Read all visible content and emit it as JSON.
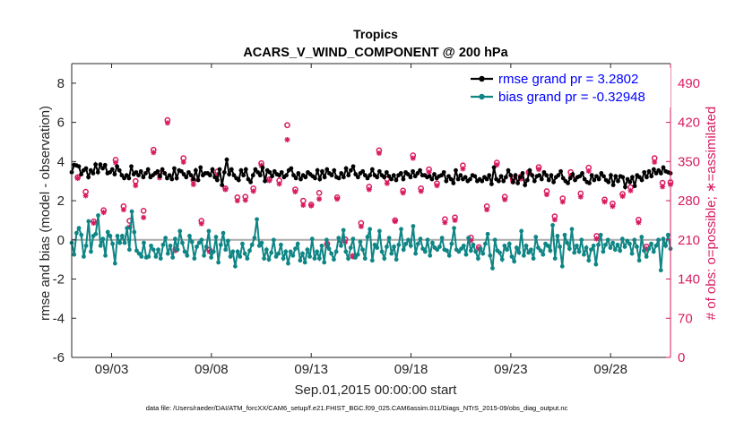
{
  "chart_data": {
    "type": "line",
    "title": "Tropics",
    "subtitle": "ACARS_V_WIND_COMPONENT @ 200 hPa",
    "xlabel": "Sep.01,2015 00:00:00 start",
    "ylabel": "rmse and bias (model - observation)",
    "ylabel_right": "# of obs: o=possible; ∗=assimilated",
    "xlim": [
      1,
      31
    ],
    "ylim": [
      -6,
      9
    ],
    "ylim_right": [
      0,
      525
    ],
    "x_ticks": [
      "09/03",
      "09/08",
      "09/13",
      "09/18",
      "09/23",
      "09/28"
    ],
    "x_tick_positions": [
      3,
      8,
      13,
      18,
      23,
      28
    ],
    "y_ticks": [
      "8",
      "6",
      "4",
      "2",
      "0",
      "-2",
      "-4",
      "-6"
    ],
    "y_right_ticks": [
      "490",
      "420",
      "350",
      "280",
      "210",
      "140",
      "70",
      "0"
    ],
    "reference_line_y": 0,
    "grid": false,
    "legend_position": "top-right",
    "legend": [
      "rmse grand pr = 3.2802",
      "bias grand pr = -0.32948"
    ],
    "colors": {
      "rmse": "#000000",
      "bias": "#0f8585",
      "obs": "#d81b60",
      "zero_line": "#aaaaaa"
    },
    "series": [
      {
        "name": "rmse grand pr = 3.2802",
        "values": [
          3.45,
          3.83,
          3.8,
          3.75,
          3.35,
          3.55,
          3.65,
          3.2,
          3.55,
          3.4,
          3.85,
          3.45,
          3.85,
          3.65,
          3.82,
          3.4,
          3.45,
          3.6,
          3.35,
          3.75,
          3.55,
          3.3,
          3.15,
          3.3,
          3.15,
          3.75,
          3.35,
          3.45,
          3.3,
          3.5,
          3.2,
          3.4,
          3.6,
          3.2,
          3.3,
          3.4,
          3.5,
          3.25,
          3.6,
          3.4,
          3.15,
          3.3,
          3.1,
          3.65,
          3.15,
          3.55,
          3.5,
          3.35,
          3.2,
          3.45,
          3.3,
          3.1,
          3.55,
          3.05,
          3.7,
          3.3,
          3.4,
          3.4,
          3.3,
          3.6,
          3.2,
          3.05,
          3.6,
          2.8,
          3.45,
          4.1,
          3.35,
          3.6,
          3.3,
          3.15,
          3.05,
          3.55,
          3.3,
          3.6,
          3.1,
          2.95,
          3.3,
          3.6,
          3.45,
          3.3,
          3.7,
          3.0,
          3.55,
          3.45,
          3.25,
          3.5,
          3.35,
          3.3,
          3.45,
          3.2,
          3.3,
          3.55,
          3.65,
          3.3,
          3.15,
          3.4,
          3.1,
          3.3,
          3.2,
          3.45,
          3.35,
          3.25,
          3.15,
          3.55,
          3.1,
          3.5,
          3.2,
          3.6,
          3.4,
          3.3,
          3.55,
          3.2,
          3.15,
          3.4,
          3.2,
          3.65,
          3.3,
          3.55,
          3.75,
          3.35,
          3.2,
          3.4,
          3.5,
          3.3,
          3.15,
          3.3,
          3.6,
          3.3,
          3.2,
          3.5,
          3.3,
          3.2,
          3.45,
          3.25,
          3.1,
          3.3,
          3.05,
          3.3,
          3.4,
          3.1,
          3.45,
          3.35,
          3.2,
          3.5,
          3.25,
          3.4,
          3.55,
          3.3,
          3.3,
          3.2,
          3.25,
          3.1,
          3.35,
          3.15,
          3.25,
          3.3,
          3.45,
          3.0,
          3.25,
          3.1,
          2.9,
          3.55,
          3.1,
          3.3,
          3.1,
          3.2,
          3.0,
          3.1,
          3.3,
          3.25,
          3.0,
          3.1,
          3.0,
          3.2,
          3.1,
          3.3,
          2.85,
          3.7,
          3.1,
          3.0,
          3.25,
          3.0,
          3.2,
          3.55,
          3.3,
          2.95,
          3.3,
          2.9,
          3.2,
          3.4,
          2.8,
          3.05,
          3.55,
          3.3,
          3.0,
          3.25,
          3.3,
          3.1,
          3.45,
          3.3,
          3.05,
          3.3,
          2.95,
          3.2,
          3.3,
          3.5,
          3.15,
          3.0,
          2.9,
          3.15,
          3.35,
          3.05,
          3.2,
          3.25,
          3.4,
          3.1,
          2.95,
          2.9,
          3.3,
          3.05,
          3.25,
          3.1,
          3.4,
          3.25,
          3.05,
          2.95,
          3.3,
          2.8,
          3.25,
          3.0,
          3.25,
          3.2,
          2.7,
          3.1,
          2.95,
          3.2,
          2.75,
          3.3,
          3.2,
          3.05,
          3.45,
          3.2,
          3.5,
          3.25,
          3.6,
          3.4,
          3.55,
          3.4,
          3.7,
          3.5,
          3.45,
          3.4
        ]
      },
      {
        "name": "bias grand pr = -0.32948",
        "values": [
          -0.15,
          -0.75,
          0.35,
          0.6,
          0.25,
          -0.85,
          -0.3,
          0.95,
          -0.6,
          0.2,
          0.3,
          1.25,
          -0.3,
          0.05,
          -0.8,
          0.4,
          0.2,
          -0.2,
          -1.2,
          0.2,
          -0.15,
          0.2,
          -0.15,
          0.6,
          -0.5,
          1.45,
          0.4,
          -0.55,
          -0.7,
          -0.85,
          -0.15,
          -0.9,
          -0.85,
          -0.3,
          -0.5,
          -0.85,
          -0.5,
          -0.95,
          -0.25,
          0.1,
          -0.7,
          -0.3,
          -0.9,
          0.05,
          -0.5,
          0.45,
          -0.15,
          -0.6,
          -0.8,
          0.2,
          -0.1,
          -0.95,
          -0.35,
          -0.15,
          0.0,
          -0.8,
          -0.35,
          0.45,
          -0.9,
          -0.6,
          0.15,
          -1.15,
          -0.25,
          0.35,
          -0.5,
          -0.05,
          -0.85,
          -0.6,
          -1.35,
          -0.6,
          -0.85,
          -0.2,
          -0.7,
          -0.95,
          -0.55,
          -0.25,
          0.1,
          1.05,
          -0.3,
          -0.15,
          -0.95,
          -0.5,
          -1.0,
          -0.65,
          0.0,
          -0.85,
          -0.7,
          -0.25,
          -0.95,
          -0.6,
          -1.2,
          -0.6,
          -0.8,
          -0.45,
          -0.2,
          -1.05,
          -0.7,
          -1.15,
          -0.5,
          -0.85,
          0.05,
          -0.95,
          -0.6,
          -0.95,
          -0.3,
          -1.15,
          0.0,
          -0.45,
          -0.7,
          -1.0,
          -0.6,
          0.1,
          -0.3,
          0.5,
          -0.6,
          -0.95,
          -0.4,
          0.05,
          -0.9,
          -0.75,
          -0.1,
          -0.5,
          -0.95,
          0.15,
          0.55,
          -1.05,
          -0.25,
          -0.4,
          0.45,
          -0.6,
          -0.95,
          -0.35,
          0.1,
          -0.7,
          -0.35,
          -1.0,
          -0.25,
          0.55,
          -0.5,
          -0.2,
          0.0,
          -0.3,
          0.7,
          -0.7,
          -0.2,
          0.05,
          -0.45,
          -0.6,
          0.0,
          -0.8,
          -0.15,
          -0.4,
          -0.5,
          -0.35,
          0.1,
          -0.5,
          -0.55,
          -0.8,
          -0.2,
          0.6,
          -0.5,
          -0.6,
          -0.45,
          -0.3,
          -0.75,
          0.1,
          -0.55,
          -0.25,
          -0.6,
          -0.95,
          -0.45,
          -0.7,
          -0.2,
          0.3,
          -0.8,
          -1.45,
          0.0,
          -0.55,
          -0.65,
          -1.0,
          -0.3,
          -0.5,
          -0.2,
          -0.85,
          -1.1,
          -0.4,
          -0.65,
          0.45,
          -0.8,
          -0.3,
          -0.65,
          -0.5,
          -0.95,
          0.15,
          -0.4,
          -0.55,
          -0.75,
          -0.2,
          -0.3,
          -0.55,
          0.75,
          -0.95,
          0.2,
          -0.35,
          -1.35,
          0.25,
          -0.15,
          -0.45,
          0.55,
          -0.65,
          -0.3,
          -0.6,
          0.0,
          -0.75,
          -0.4,
          -1.05,
          -0.5,
          -0.3,
          -1.25,
          -0.25,
          0.25,
          -0.6,
          -0.25,
          0.0,
          -0.4,
          -0.15,
          -0.5,
          -0.25,
          -0.55,
          0.05,
          -0.35,
          -0.05,
          -0.2,
          -0.7,
          0.0,
          -0.35,
          -1.05,
          0.15,
          -0.55,
          -0.85,
          -0.45,
          -0.2,
          -0.6,
          -0.3,
          0.0,
          -1.55,
          0.05,
          -0.3,
          0.25,
          -0.45
        ]
      }
    ],
    "obs_x": [
      1.3,
      1.7,
      2.1,
      2.6,
      3.2,
      3.6,
      3.9,
      4.2,
      4.6,
      5.1,
      5.4,
      5.8,
      6.2,
      6.6,
      7.1,
      7.5,
      7.9,
      8.3,
      8.7,
      9.3,
      9.7,
      10.1,
      10.5,
      10.9,
      11.4,
      11.8,
      12.2,
      12.6,
      13.0,
      13.4,
      13.8,
      14.3,
      14.7,
      15.1,
      15.5,
      15.9,
      16.4,
      16.8,
      17.2,
      17.6,
      18.1,
      18.5,
      18.9,
      19.3,
      19.7,
      20.2,
      20.6,
      21.0,
      21.4,
      21.8,
      22.3,
      22.7,
      23.1,
      23.5,
      23.9,
      24.4,
      24.8,
      25.2,
      25.6,
      26.0,
      26.5,
      26.9,
      27.3,
      27.7,
      28.1,
      28.6,
      29.0,
      29.4,
      29.8,
      30.2,
      30.6,
      31.0
    ],
    "obs_possible": [
      322,
      296,
      243,
      263,
      353,
      270,
      244,
      315,
      262,
      371,
      329,
      424,
      193,
      356,
      317,
      244,
      192,
      332,
      302,
      286,
      287,
      302,
      347,
      318,
      316,
      415,
      300,
      280,
      273,
      294,
      203,
      286,
      211,
      181,
      240,
      305,
      370,
      319,
      245,
      298,
      361,
      302,
      336,
      311,
      247,
      250,
      343,
      214,
      197,
      270,
      348,
      287,
      319,
      323,
      331,
      340,
      297,
      252,
      284,
      331,
      293,
      339,
      217,
      282,
      275,
      292,
      304,
      246,
      198,
      356,
      312,
      313
    ],
    "obs_assimilated": [
      320,
      289,
      240,
      259,
      348,
      264,
      233,
      307,
      250,
      366,
      321,
      419,
      191,
      349,
      309,
      239,
      189,
      327,
      300,
      280,
      281,
      297,
      343,
      316,
      310,
      389,
      296,
      272,
      271,
      283,
      200,
      283,
      206,
      180,
      234,
      300,
      365,
      311,
      243,
      294,
      356,
      297,
      331,
      307,
      241,
      245,
      337,
      209,
      194,
      264,
      344,
      282,
      314,
      319,
      329,
      336,
      291,
      246,
      278,
      325,
      287,
      333,
      212,
      278,
      270,
      288,
      298,
      241,
      194,
      349,
      305,
      309
    ]
  },
  "footer": "data file: /Users/raeder/DAI/ATM_forcXX/CAM6_setup/f.e21.FHIST_BGC.f09_025.CAM6assim.011/Diags_NTrS_2015-09/obs_diag_output.nc"
}
